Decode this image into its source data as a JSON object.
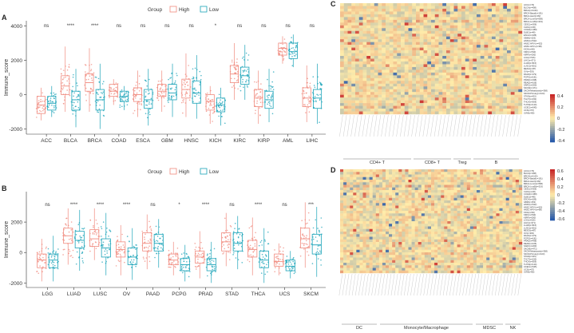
{
  "chart_data": [
    {
      "panel_label": "A",
      "type": "boxplot",
      "ylabel": "Immune_score",
      "ylim": [
        -2300,
        4300
      ],
      "yticks": [
        -2000,
        0,
        2000,
        4000
      ],
      "legend": {
        "title": "Group",
        "entries": [
          "High",
          "Low"
        ],
        "placement": "top"
      },
      "categories": [
        "ACC",
        "BLCA",
        "BRCA",
        "COAD",
        "ESCA",
        "GBM",
        "HNSC",
        "KICH",
        "KIRC",
        "KIRP",
        "AML",
        "LIHC"
      ],
      "significance": [
        "ns",
        "****",
        "****",
        "ns",
        "ns",
        "ns",
        "ns",
        "*",
        "ns",
        "ns",
        "ns",
        "ns"
      ],
      "series": [
        {
          "name": "High",
          "color": "#f08a7e",
          "boxes": [
            [
              -1500,
              -1100,
              -600,
              -100,
              400
            ],
            [
              -1000,
              0,
              500,
              1100,
              2800
            ],
            [
              -1000,
              200,
              700,
              1200,
              2700
            ],
            [
              -600,
              -100,
              200,
              600,
              900
            ],
            [
              -1300,
              -400,
              0,
              400,
              1400
            ],
            [
              -1000,
              -100,
              200,
              600,
              1400
            ],
            [
              -1300,
              -200,
              300,
              900,
              2400
            ],
            [
              -1700,
              -900,
              -400,
              0,
              500
            ],
            [
              -300,
              700,
              1200,
              1700,
              3000
            ],
            [
              -1700,
              -700,
              -200,
              300,
              1400
            ],
            [
              1800,
              2300,
              2700,
              3000,
              3400
            ],
            [
              -1600,
              -700,
              -200,
              400,
              1700
            ]
          ]
        },
        {
          "name": "Low",
          "color": "#1aa3b8",
          "boxes": [
            [
              -1300,
              -900,
              -500,
              -100,
              500
            ],
            [
              -1900,
              -900,
              -300,
              200,
              1500
            ],
            [
              -2000,
              -900,
              -300,
              300,
              1800
            ],
            [
              -900,
              -400,
              -100,
              200,
              500
            ],
            [
              -1800,
              -800,
              -300,
              300,
              1500
            ],
            [
              -1300,
              -300,
              100,
              600,
              1800
            ],
            [
              -1400,
              -500,
              100,
              800,
              2300
            ],
            [
              -1800,
              -1000,
              -600,
              -200,
              400
            ],
            [
              -300,
              600,
              1100,
              1600,
              2900
            ],
            [
              -1600,
              -800,
              -300,
              200,
              1500
            ],
            [
              1600,
              2100,
              2500,
              3000,
              3500
            ],
            [
              -1700,
              -800,
              -200,
              300,
              1800
            ]
          ]
        }
      ]
    },
    {
      "panel_label": "B",
      "type": "boxplot",
      "ylabel": "Immune_score",
      "ylim": [
        -2300,
        4000
      ],
      "yticks": [
        -2000,
        0,
        2000
      ],
      "legend": {
        "title": "Group",
        "entries": [
          "High",
          "Low"
        ],
        "placement": "top"
      },
      "categories": [
        "LGG",
        "LUAD",
        "LUSC",
        "OV",
        "PAAD",
        "PCPG",
        "PRAD",
        "STAD",
        "THCA",
        "UCS",
        "SKCM"
      ],
      "significance": [
        "ns",
        "****",
        "****",
        "****",
        "ns",
        "*",
        "****",
        "ns",
        "****",
        "ns",
        "***"
      ],
      "series": [
        {
          "name": "High",
          "color": "#f08a7e",
          "boxes": [
            [
              -1900,
              -1000,
              -500,
              -100,
              900
            ],
            [
              -800,
              600,
              1100,
              1600,
              2900
            ],
            [
              -500,
              400,
              900,
              1500,
              2900
            ],
            [
              -1500,
              -300,
              200,
              700,
              1800
            ],
            [
              -1100,
              100,
              600,
              1300,
              2500
            ],
            [
              -1500,
              -800,
              -500,
              -100,
              700
            ],
            [
              -1700,
              -700,
              -300,
              100,
              1400
            ],
            [
              -900,
              100,
              700,
              1300,
              2600
            ],
            [
              -1500,
              -300,
              200,
              800,
              2300
            ],
            [
              -1500,
              -900,
              -600,
              -100,
              600
            ],
            [
              -1000,
              300,
              900,
              1600,
              3300
            ]
          ]
        },
        {
          "name": "Low",
          "color": "#1aa3b8",
          "boxes": [
            [
              -1900,
              -1000,
              -500,
              -100,
              1100
            ],
            [
              -1200,
              300,
              800,
              1400,
              2800
            ],
            [
              -1500,
              -300,
              300,
              900,
              2600
            ],
            [
              -1800,
              -800,
              -300,
              300,
              1600
            ],
            [
              -1000,
              100,
              600,
              1200,
              2200
            ],
            [
              -1900,
              -1200,
              -800,
              -400,
              500
            ],
            [
              -2000,
              -1200,
              -800,
              -400,
              700
            ],
            [
              -1100,
              100,
              600,
              1300,
              2400
            ],
            [
              -2000,
              -1000,
              -500,
              100,
              1600
            ],
            [
              -1700,
              -1200,
              -900,
              -500,
              100
            ],
            [
              -1600,
              -100,
              500,
              1200,
              3000
            ]
          ]
        }
      ]
    },
    {
      "panel_label": "C",
      "type": "heatmap",
      "groups": [
        "CD4+ T",
        "CD8+ T",
        "Treg",
        "B"
      ],
      "colorbar_ticks": [
        "0.4",
        "0.2",
        "0",
        "-0.2",
        "-0.4"
      ],
      "row_labels": [
        "ACC(n=79)",
        "BLCA(n=408)",
        "BRCA(n=1100)",
        "BRCA-Basal(n=191)",
        "BRCA-Her2(n=82)",
        "BRCA-LumA(n=568)",
        "BRCA-LumB(n=219)",
        "CESC(n=306)",
        "CHOL(n=36)",
        "COAD(n=458)",
        "DLBC(n=48)",
        "ESCA(n=185)",
        "GBM(n=153)",
        "HNSC(n=522)",
        "HNSC-HPV-(n=422)",
        "HNSC-HPV+(n=98)",
        "KICH(n=66)",
        "KIRC(n=533)",
        "KIRP(n=290)",
        "LGG(n=516)",
        "LIHC(n=371)",
        "LUAD(n=515)",
        "LUSC(n=501)",
        "MESO(n=87)",
        "OV(n=303)",
        "PAAD(n=179)",
        "PCPG(n=181)",
        "PRAD(n=498)",
        "READ(n=166)",
        "SARC(n=260)",
        "SKCM(n=471)",
        "SKCM-Metastasis(n=368)",
        "SKCM-Primary(n=103)",
        "STAD(n=415)",
        "TGCT(n=150)",
        "THCA(n=509)",
        "THYM(n=120)",
        "UCEC(n=545)",
        "UCS(n=57)",
        "UVM(n=80)"
      ]
    },
    {
      "panel_label": "D",
      "type": "heatmap",
      "groups": [
        "DC",
        "Monocyte/Macrophage",
        "MDSC",
        "NK"
      ],
      "colorbar_ticks": [
        "0.6",
        "0.4",
        "0.2",
        "0",
        "-0.2",
        "-0.4",
        "-0.6"
      ],
      "row_labels": [
        "ACC(n=79)",
        "BLCA(n=408)",
        "BRCA(n=1100)",
        "BRCA-Basal(n=191)",
        "BRCA-Her2(n=82)",
        "BRCA-LumA(n=568)",
        "BRCA-LumB(n=219)",
        "CESC(n=306)",
        "CHOL(n=36)",
        "COAD(n=458)",
        "DLBC(n=48)",
        "ESCA(n=185)",
        "GBM(n=153)",
        "HNSC(n=522)",
        "HNSC-HPV-(n=422)",
        "HNSC-HPV+(n=98)",
        "KICH(n=66)",
        "KIRC(n=533)",
        "KIRP(n=290)",
        "LGG(n=516)",
        "LIHC(n=371)",
        "LUAD(n=515)",
        "LUSC(n=501)",
        "MESO(n=87)",
        "OV(n=303)",
        "PAAD(n=179)",
        "PCPG(n=181)",
        "PRAD(n=498)",
        "READ(n=166)",
        "SARC(n=260)",
        "SKCM(n=471)",
        "SKCM-Metastasis(n=368)",
        "SKCM-Primary(n=103)",
        "STAD(n=415)",
        "TGCT(n=150)",
        "THCA(n=509)",
        "THYM(n=120)",
        "UCEC(n=545)",
        "UCS(n=57)",
        "UVM(n=80)"
      ]
    }
  ]
}
